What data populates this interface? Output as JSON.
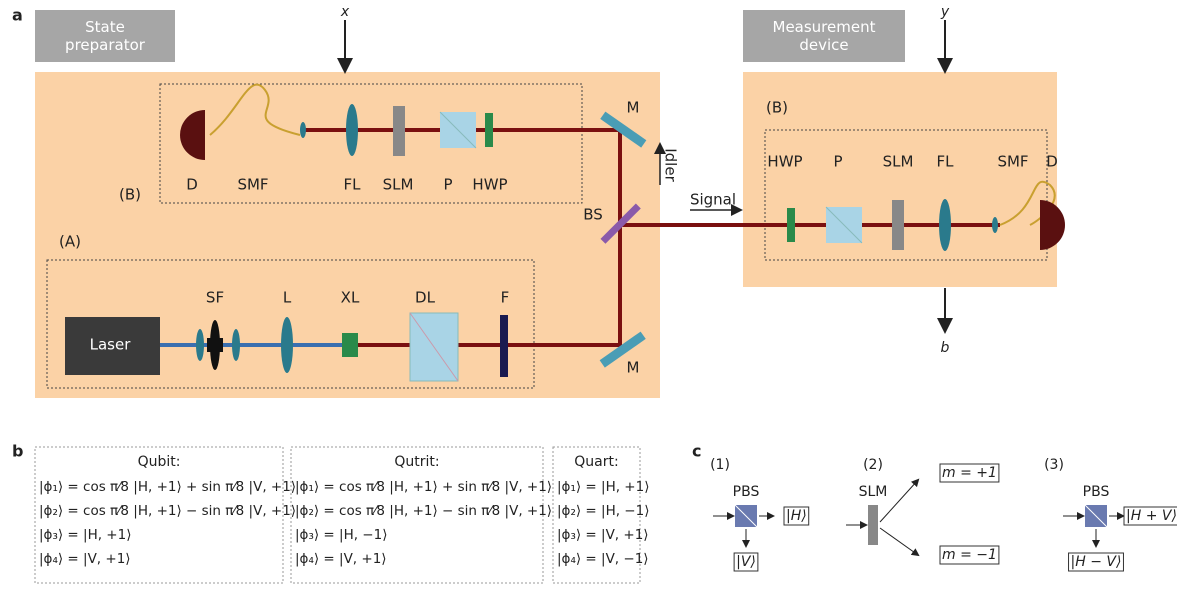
{
  "panel_a": {
    "label": "a",
    "state_preparator": "State preparator",
    "measurement_device": "Measurement device",
    "input_x": "x",
    "input_y": "y",
    "output_b": "b",
    "left_labels": [
      "D",
      "SMF",
      "FL",
      "SLM",
      "P",
      "HWP",
      "M",
      "(B)",
      "BS",
      "Idler",
      "Signal",
      "(A)",
      "SF",
      "L",
      "XL",
      "DL",
      "F",
      "M",
      "Laser"
    ],
    "right_labels": [
      "(B)",
      "HWP",
      "P",
      "SLM",
      "FL",
      "SMF",
      "D"
    ]
  },
  "panel_b": {
    "label": "b",
    "boxes": [
      {
        "title": "Qubit:",
        "lines": [
          "|ϕ₁⟩ = cos π⁄8 |H, +1⟩ + sin π⁄8 |V, +1⟩",
          "|ϕ₂⟩ = cos π⁄8 |H, +1⟩ − sin π⁄8 |V, +1⟩",
          "|ϕ₃⟩ = |H, +1⟩",
          "|ϕ₄⟩ = |V, +1⟩"
        ]
      },
      {
        "title": "Qutrit:",
        "lines": [
          "|ϕ₁⟩ = cos π⁄8 |H, +1⟩ + sin π⁄8 |V, +1⟩",
          "|ϕ₂⟩ = cos π⁄8 |H, +1⟩ − sin π⁄8 |V, +1⟩",
          "|ϕ₃⟩ = |H, −1⟩",
          "|ϕ₄⟩ = |V, +1⟩"
        ]
      },
      {
        "title": "Quart:",
        "lines": [
          "|ϕ₁⟩ = |H, +1⟩",
          "|ϕ₂⟩ = |H, −1⟩",
          "|ϕ₃⟩ = |V, +1⟩",
          "|ϕ₄⟩ = |V, −1⟩"
        ]
      }
    ]
  },
  "panel_c": {
    "label": "c",
    "items": [
      {
        "number": "(1)",
        "element": "PBS",
        "outputs": [
          "|H⟩",
          "|V⟩"
        ]
      },
      {
        "number": "(2)",
        "element": "SLM",
        "outputs": [
          "m = +1",
          "m = −1"
        ]
      },
      {
        "number": "(3)",
        "element": "PBS",
        "outputs": [
          "|H + V⟩",
          "|H − V⟩"
        ]
      }
    ]
  }
}
